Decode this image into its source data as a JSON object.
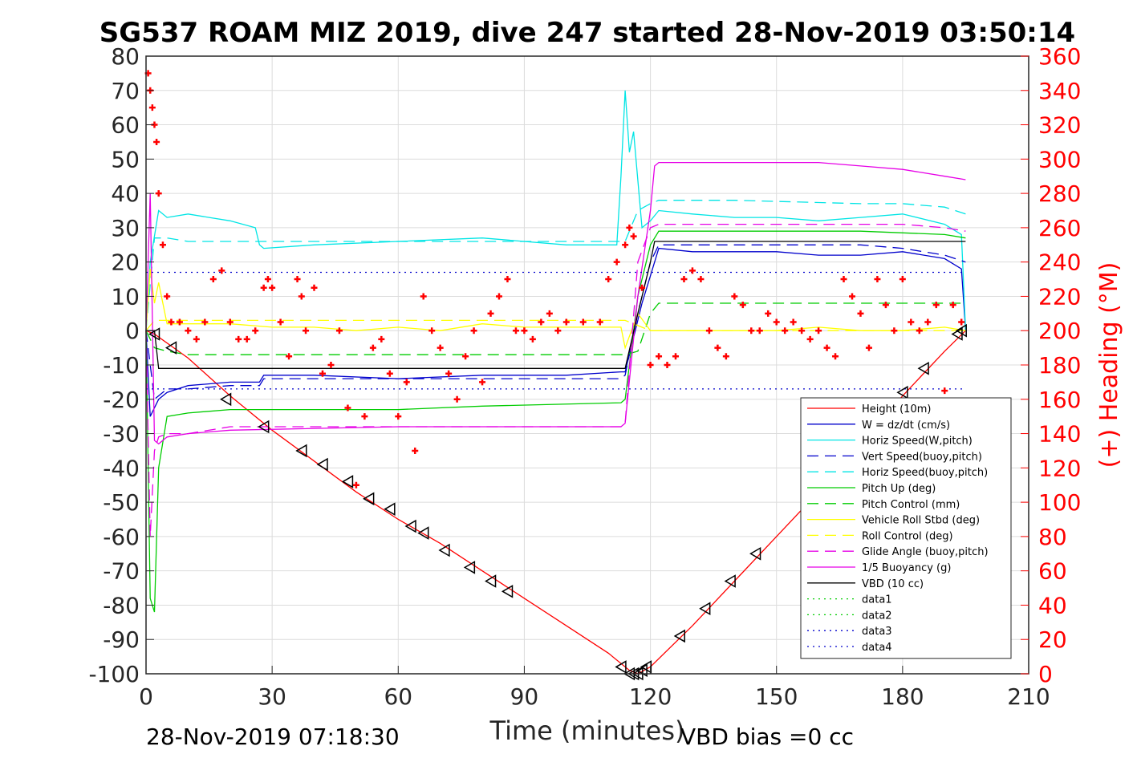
{
  "chart_data": {
    "type": "line",
    "title": "SG537 ROAM MIZ 2019, dive 247 started 28-Nov-2019 03:50:14",
    "xlabel": "Time (minutes)",
    "ylabel_right": "(+) Heading (°M)",
    "footer_left": "28-Nov-2019 07:18:30",
    "footer_right": "VBD bias =0 cc",
    "xlim": [
      0,
      210
    ],
    "ylim": [
      -100,
      80
    ],
    "ylim_right": [
      0,
      360
    ],
    "x_ticks": [
      "0",
      "30",
      "60",
      "90",
      "120",
      "150",
      "180",
      "210"
    ],
    "y_ticks": [
      "80",
      "70",
      "60",
      "50",
      "40",
      "30",
      "20",
      "10",
      "0",
      "-10",
      "-20",
      "-30",
      "-40",
      "-50",
      "-60",
      "-70",
      "-80",
      "-90",
      "-100"
    ],
    "y_ticks_right": [
      "360",
      "340",
      "320",
      "300",
      "280",
      "260",
      "240",
      "220",
      "200",
      "180",
      "160",
      "140",
      "120",
      "100",
      "80",
      "60",
      "40",
      "20",
      "0"
    ],
    "grid": true,
    "legend_position": "bottom-right",
    "colors": {
      "height": "#ff0000",
      "w": "#0000cc",
      "horiz": "#00e5e5",
      "vert_buoy": "#0000cc",
      "horiz_buoy": "#00e5e5",
      "pitch": "#00cc00",
      "pitch_ctl": "#00cc00",
      "roll": "#ffff00",
      "roll_ctl": "#ffff00",
      "glide": "#e600e6",
      "buoy": "#e600e6",
      "vbd": "#000000",
      "heading": "#ff0000"
    },
    "series": [
      {
        "name": "Height (10m)",
        "style": "solid",
        "color": "#ff0000",
        "x": [
          0,
          2,
          10,
          20,
          30,
          40,
          50,
          60,
          70,
          80,
          90,
          100,
          110,
          115,
          117,
          120,
          130,
          140,
          150,
          160,
          170,
          180,
          190,
          195
        ],
        "y": [
          0,
          -1,
          -8,
          -19,
          -29,
          -38,
          -47,
          -55,
          -62,
          -70,
          -78,
          -86,
          -94,
          -99,
          -100,
          -98,
          -86,
          -73,
          -60,
          -47,
          -33,
          -19,
          -6,
          0
        ]
      },
      {
        "name": "W = dz/dt (cm/s)",
        "style": "solid",
        "color": "#0000cc",
        "x": [
          0,
          1,
          3,
          5,
          10,
          20,
          27,
          28,
          40,
          60,
          80,
          100,
          113,
          114,
          116,
          118,
          120,
          122,
          130,
          140,
          150,
          160,
          170,
          180,
          190,
          194,
          195
        ],
        "y": [
          0,
          -25,
          -20,
          -18,
          -16,
          -15,
          -15,
          -13,
          -13,
          -14,
          -13,
          -13,
          -12,
          -12,
          -2,
          8,
          16,
          24,
          23,
          23,
          23,
          22,
          22,
          23,
          21,
          18,
          0
        ]
      },
      {
        "name": "Horiz Speed(W,pitch)",
        "style": "solid",
        "color": "#00e5e5",
        "x": [
          0,
          1,
          3,
          5,
          10,
          15,
          20,
          26,
          27,
          28,
          40,
          60,
          80,
          100,
          112,
          113,
          114,
          115,
          116,
          118,
          120,
          122,
          130,
          140,
          150,
          160,
          170,
          180,
          190,
          194,
          195
        ],
        "y": [
          0,
          20,
          35,
          33,
          34,
          33,
          32,
          30,
          25,
          24,
          25,
          26,
          27,
          25,
          25,
          45,
          70,
          52,
          58,
          30,
          32,
          35,
          34,
          33,
          33,
          32,
          33,
          34,
          31,
          28,
          0
        ]
      },
      {
        "name": "Vert Speed(buoy,pitch)",
        "style": "dashed",
        "color": "#0000cc",
        "x": [
          0,
          2,
          5,
          10,
          20,
          27,
          28,
          50,
          80,
          113,
          114,
          117,
          120,
          122,
          140,
          170,
          180,
          190,
          195
        ],
        "y": [
          0,
          -20,
          -17,
          -17,
          -16,
          -16,
          -14,
          -14,
          -14,
          -14,
          -13,
          5,
          20,
          25,
          25,
          25,
          24,
          22,
          20
        ]
      },
      {
        "name": "Horiz Speed(buoy,pitch)",
        "style": "dashed",
        "color": "#00e5e5",
        "x": [
          0,
          2,
          5,
          10,
          20,
          30,
          60,
          90,
          113,
          114,
          117,
          120,
          122,
          140,
          170,
          180,
          190,
          195
        ],
        "y": [
          0,
          27,
          27,
          26,
          26,
          26,
          26,
          26,
          26,
          26,
          35,
          37,
          38,
          38,
          37,
          37,
          36,
          34
        ]
      },
      {
        "name": "Pitch Up (deg)",
        "style": "solid",
        "color": "#00cc00",
        "x": [
          0,
          1,
          2,
          3,
          5,
          10,
          20,
          40,
          60,
          80,
          113,
          114,
          117,
          120,
          122,
          140,
          170,
          190,
          195
        ],
        "y": [
          0,
          -78,
          -82,
          -40,
          -25,
          -24,
          -23,
          -23,
          -23,
          -22,
          -21,
          -20,
          10,
          25,
          29,
          29,
          29,
          28,
          27
        ]
      },
      {
        "name": "Pitch Control (mm)",
        "style": "dashed",
        "color": "#00cc00",
        "x": [
          0,
          2,
          5,
          10,
          20,
          60,
          113,
          114,
          117,
          120,
          122,
          150,
          170,
          190,
          195
        ],
        "y": [
          0,
          -5,
          -6,
          -7,
          -7,
          -7,
          -7,
          -7,
          -6,
          5,
          8,
          8,
          8,
          8,
          8
        ]
      },
      {
        "name": "Vehicle Roll Stbd (deg)",
        "style": "solid",
        "color": "#ffff00",
        "x": [
          0,
          1,
          2,
          3,
          5,
          10,
          20,
          30,
          40,
          50,
          60,
          70,
          80,
          90,
          100,
          110,
          113,
          114,
          117,
          120,
          125,
          130,
          140,
          150,
          160,
          170,
          180,
          190,
          195
        ],
        "y": [
          0,
          18,
          8,
          14,
          2,
          2,
          2,
          1,
          1,
          0,
          1,
          0,
          2,
          1,
          1,
          1,
          1,
          -5,
          5,
          0,
          0,
          0,
          0,
          0,
          1,
          0,
          0,
          1,
          0
        ]
      },
      {
        "name": "Roll Control (deg)",
        "style": "dashed",
        "color": "#ffff00",
        "x": [
          0,
          2,
          5,
          10,
          60,
          113,
          114,
          120,
          122,
          160,
          195
        ],
        "y": [
          0,
          3,
          3,
          3,
          3,
          3,
          3,
          0,
          0,
          0,
          0
        ]
      },
      {
        "name": "Glide Angle (buoy,pitch)",
        "style": "dashed",
        "color": "#e600e6",
        "x": [
          0,
          1,
          2,
          3,
          5,
          10,
          20,
          60,
          113,
          114,
          117,
          120,
          122,
          140,
          170,
          180,
          190,
          195
        ],
        "y": [
          0,
          -60,
          -35,
          -31,
          -30,
          -30,
          -28,
          -28,
          -28,
          -27,
          20,
          30,
          31,
          31,
          31,
          31,
          30,
          29
        ]
      },
      {
        "name": "1/5 Buoyancy (g)",
        "style": "solid",
        "color": "#e600e6",
        "x": [
          0,
          1,
          2,
          3,
          5,
          10,
          20,
          60,
          113,
          114,
          117,
          120,
          121,
          122,
          140,
          160,
          170,
          180,
          190,
          195
        ],
        "y": [
          0,
          40,
          -32,
          -33,
          -31,
          -30,
          -29,
          -28,
          -28,
          -27,
          10,
          35,
          48,
          49,
          49,
          49,
          48,
          47,
          45,
          44
        ]
      },
      {
        "name": "VBD (10 cc)",
        "style": "solid",
        "color": "#000000",
        "x": [
          0,
          2,
          3,
          10,
          60,
          113,
          114,
          117,
          120,
          121,
          122,
          150,
          180,
          194,
          195
        ],
        "y": [
          0,
          0,
          -11,
          -11,
          -11,
          -11,
          -11,
          5,
          20,
          26,
          26,
          26,
          26,
          26,
          26
        ]
      },
      {
        "name": "data1",
        "style": "dotted",
        "color": "#00cc00",
        "x": [],
        "y": []
      },
      {
        "name": "data2",
        "style": "dotted",
        "color": "#00cc00",
        "x": [],
        "y": []
      },
      {
        "name": "data3",
        "style": "dotted",
        "color": "#0000cc",
        "x": [
          0,
          195
        ],
        "y": [
          17,
          17
        ]
      },
      {
        "name": "data4",
        "style": "dotted",
        "color": "#0000cc",
        "x": [
          0,
          195
        ],
        "y": [
          -17,
          -17
        ]
      }
    ],
    "heading_markers": {
      "color": "#ff0000",
      "x": [
        0.5,
        1,
        1.5,
        2,
        2.5,
        3,
        4,
        5,
        6,
        8,
        10,
        12,
        14,
        16,
        18,
        20,
        22,
        24,
        26,
        28,
        29,
        30,
        32,
        34,
        36,
        37,
        38,
        40,
        42,
        44,
        46,
        48,
        50,
        52,
        54,
        56,
        58,
        60,
        62,
        64,
        66,
        68,
        70,
        72,
        74,
        76,
        78,
        80,
        82,
        84,
        86,
        88,
        90,
        92,
        94,
        96,
        98,
        100,
        104,
        108,
        110,
        112,
        114,
        115,
        116,
        118,
        120,
        122,
        124,
        126,
        128,
        130,
        132,
        134,
        136,
        138,
        140,
        142,
        144,
        146,
        148,
        150,
        152,
        154,
        156,
        158,
        160,
        162,
        164,
        166,
        168,
        170,
        172,
        174,
        176,
        178,
        180,
        182,
        184,
        186,
        188,
        190,
        192,
        194
      ],
      "y": [
        350,
        340,
        330,
        320,
        310,
        280,
        250,
        220,
        205,
        205,
        200,
        195,
        205,
        230,
        235,
        205,
        195,
        195,
        200,
        225,
        230,
        225,
        205,
        185,
        230,
        220,
        200,
        225,
        175,
        180,
        200,
        155,
        110,
        150,
        190,
        195,
        175,
        150,
        170,
        130,
        220,
        200,
        190,
        175,
        160,
        185,
        200,
        170,
        210,
        220,
        230,
        200,
        200,
        195,
        205,
        210,
        200,
        205,
        205,
        205,
        230,
        240,
        250,
        260,
        255,
        225,
        180,
        185,
        180,
        185,
        230,
        235,
        230,
        200,
        190,
        185,
        220,
        215,
        200,
        200,
        210,
        205,
        200,
        205,
        200,
        195,
        200,
        190,
        185,
        230,
        220,
        210,
        190,
        230,
        215,
        200,
        230,
        205,
        200,
        205,
        215,
        165,
        215,
        205
      ]
    },
    "waypoint_markers": {
      "color": "#000000",
      "x": [
        2,
        6,
        19,
        28,
        37,
        42,
        48,
        53,
        58,
        63,
        66,
        71,
        77,
        82,
        86,
        113,
        115,
        116,
        117,
        118,
        119,
        127,
        133,
        139,
        145,
        180,
        185,
        193,
        194
      ],
      "y": [
        -1,
        -5,
        -20,
        -28,
        -35,
        -39,
        -44,
        -49,
        -52,
        -57,
        -59,
        -64,
        -69,
        -73,
        -76,
        -98,
        -100,
        -100,
        -100,
        -99,
        -98,
        -89,
        -81,
        -73,
        -65,
        -18,
        -11,
        -1,
        0
      ]
    }
  },
  "legend_entries": [
    "Height (10m)",
    "W = dz/dt (cm/s)",
    "Horiz Speed(W,pitch)",
    "Vert Speed(buoy,pitch)",
    "Horiz Speed(buoy,pitch)",
    "Pitch Up (deg)",
    "Pitch Control (mm)",
    "Vehicle Roll Stbd (deg)",
    "Roll Control (deg)",
    "Glide Angle (buoy,pitch)",
    "1/5 Buoyancy (g)",
    "VBD (10 cc)",
    "data1",
    "data2",
    "data3",
    "data4"
  ]
}
